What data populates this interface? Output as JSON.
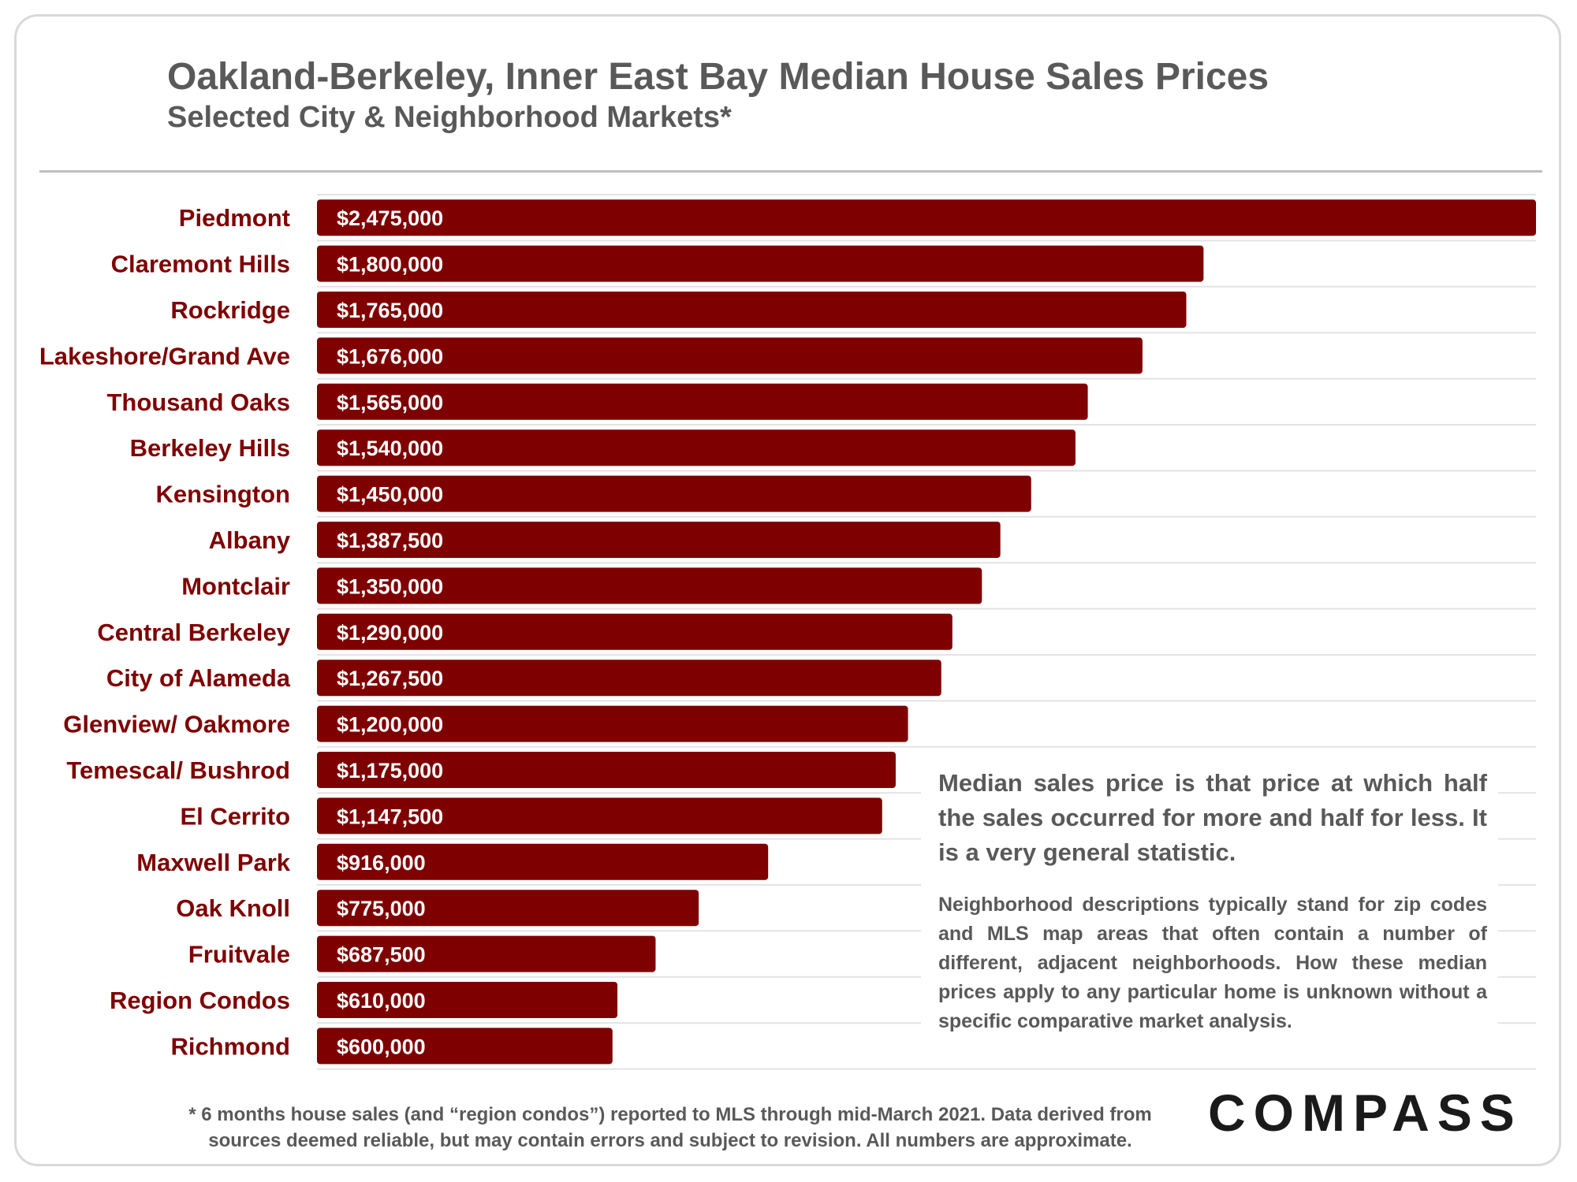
{
  "chart_data": {
    "type": "bar",
    "orientation": "horizontal",
    "title": "Oakland-Berkeley, Inner East Bay Median House Sales Prices",
    "subtitle": "Selected City & Neighborhood Markets*",
    "xlabel": "",
    "ylabel": "",
    "xlim": [
      0,
      2475000
    ],
    "grid": true,
    "legend": "none",
    "bar_color": "#7f0000",
    "label_color": "#7f0000",
    "categories": [
      "Piedmont",
      "Claremont Hills",
      "Rockridge",
      "Lakeshore/Grand Ave",
      "Thousand Oaks",
      "Berkeley Hills",
      "Kensington",
      "Albany",
      "Montclair",
      "Central Berkeley",
      "City of Alameda",
      "Glenview/ Oakmore",
      "Temescal/ Bushrod",
      "El Cerrito",
      "Maxwell Park",
      "Oak Knoll",
      "Fruitvale",
      "Region Condos",
      "Richmond"
    ],
    "values": [
      2475000,
      1800000,
      1765000,
      1676000,
      1565000,
      1540000,
      1450000,
      1387500,
      1350000,
      1290000,
      1267500,
      1200000,
      1175000,
      1147500,
      916000,
      775000,
      687500,
      610000,
      600000
    ],
    "data_labels": [
      "$2,475,000",
      "$1,800,000",
      "$1,765,000",
      "$1,676,000",
      "$1,565,000",
      "$1,540,000",
      "$1,450,000",
      "$1,387,500",
      "$1,350,000",
      "$1,290,000",
      "$1,267,500",
      "$1,200,000",
      "$1,175,000",
      "$1,147,500",
      "$916,000",
      "$775,000",
      "$687,500",
      "$610,000",
      "$600,000"
    ]
  },
  "annotations": {
    "note_main": "Median sales price is that price at which half the sales occurred for more and half for less. It is a very general statistic.",
    "note_sub": "Neighborhood descriptions typically stand for zip codes and MLS map areas that often contain a number of different, adjacent neighborhoods. How these median prices apply to any particular home is unknown without a specific comparative market analysis."
  },
  "footnote": {
    "line1": "* 6 months house sales (and “region condos”) reported to MLS through mid-March 2021. Data derived from",
    "line2": "sources deemed reliable, but may contain errors and subject to revision. All numbers are approximate."
  },
  "logo": {
    "text": "COMPASS"
  }
}
